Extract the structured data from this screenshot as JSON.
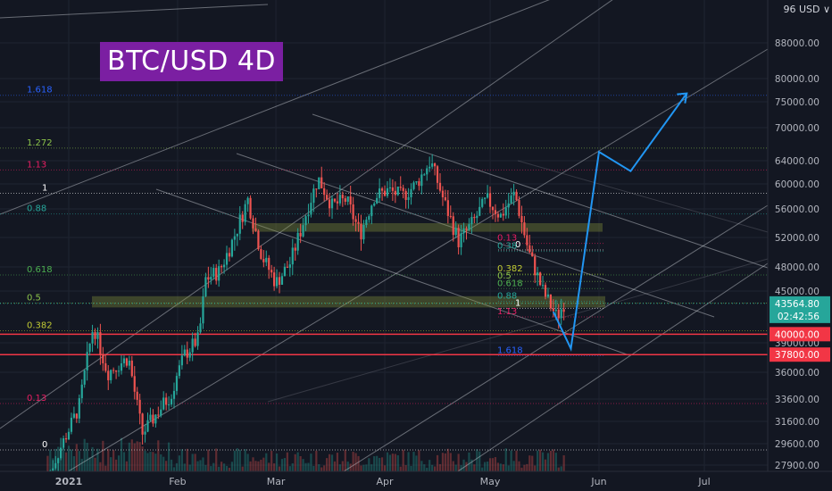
{
  "title": "BTC/USD 4D",
  "currency_label": "96\u0000 USD ∨",
  "chart_data": {
    "type": "candlestick",
    "symbol": "BTC/USD",
    "interval": "4D",
    "x_ticks": [
      "2021",
      "Feb",
      "Mar",
      "Apr",
      "May",
      "Jun",
      "Jul"
    ],
    "y_ticks": [
      88000,
      80000,
      75000,
      70000,
      64000,
      60000,
      56000,
      52000,
      48000,
      45000,
      39000,
      36000,
      33600,
      31600,
      29600,
      27900
    ],
    "y_tick_labels": [
      "88000.00",
      "80000.00",
      "75000.00",
      "70000.00",
      "64000.00",
      "60000.00",
      "56000.00",
      "52000.00",
      "48000.00",
      "45000.00",
      "39000.00",
      "36000.00",
      "33600.00",
      "31600.00",
      "29600.00",
      "27900.00"
    ],
    "current_price": {
      "value": 43564.8,
      "label": "43564.80",
      "countdown": "02:42:56",
      "color": "#26a69a"
    },
    "price_markers": [
      {
        "value": 40000,
        "label": "40000.00",
        "color": "#f23645"
      },
      {
        "value": 37800,
        "label": "37800.00",
        "color": "#f23645"
      }
    ],
    "fib_left": [
      {
        "label": "1.618",
        "value": 76400,
        "color": "#2962ff"
      },
      {
        "label": "1.272",
        "value": 66300,
        "color": "#8bc34a"
      },
      {
        "label": "1.13",
        "value": 62400,
        "color": "#e91e63"
      },
      {
        "label": "1",
        "value": 58500,
        "color": "#ffffff"
      },
      {
        "label": "0.88",
        "value": 55300,
        "color": "#26a69a"
      },
      {
        "label": "0.618",
        "value": 47000,
        "color": "#4caf50"
      },
      {
        "label": "0.5",
        "value": 43600,
        "color": "#8bc34a"
      },
      {
        "label": "0.382",
        "value": 40400,
        "color": "#c0ca33"
      },
      {
        "label": "0.13",
        "value": 33200,
        "color": "#e91e63"
      },
      {
        "label": "0",
        "value": 29100,
        "color": "#ffffff"
      }
    ],
    "fib_right": [
      {
        "label": "0",
        "value": 50300,
        "color": "#ffffff"
      },
      {
        "label": "0.13",
        "value": 51200,
        "color": "#e91e63"
      },
      {
        "label": "0.38",
        "value": 50100,
        "color": "#26a69a"
      },
      {
        "label": "0.382",
        "value": 47100,
        "color": "#c0ca33"
      },
      {
        "label": "0.5",
        "value": 46200,
        "color": "#8bc34a"
      },
      {
        "label": "0.618",
        "value": 45300,
        "color": "#4caf50"
      },
      {
        "label": "0.88",
        "value": 43800,
        "color": "#26a69a"
      },
      {
        "label": "1",
        "value": 43000,
        "color": "#ffffff"
      },
      {
        "label": "1.13",
        "value": 42000,
        "color": "#e91e63"
      },
      {
        "label": "1.618",
        "value": 37700,
        "color": "#2962ff"
      }
    ],
    "support_zones": [
      {
        "low": 43100,
        "high": 44400
      },
      {
        "low": 52800,
        "high": 54000
      }
    ],
    "projection": {
      "color": "#2196f3",
      "points": [
        {
          "x": "May 19",
          "y": 42600
        },
        {
          "x": "May 24",
          "y": 38400
        },
        {
          "x": "Jun 1",
          "y": 65600
        },
        {
          "x": "Jun 10",
          "y": 62200
        },
        {
          "x": "Jun 26",
          "y": 76800
        }
      ]
    },
    "price_path": [
      {
        "x": "Dec 26",
        "y": 27000
      },
      {
        "x": "Jan 4",
        "y": 33000
      },
      {
        "x": "Jan 8",
        "y": 41000
      },
      {
        "x": "Jan 12",
        "y": 36000
      },
      {
        "x": "Jan 18",
        "y": 37500
      },
      {
        "x": "Jan 22",
        "y": 30500
      },
      {
        "x": "Jan 26",
        "y": 32300
      },
      {
        "x": "Jan 30",
        "y": 34000
      },
      {
        "x": "Feb 3",
        "y": 37800
      },
      {
        "x": "Feb 7",
        "y": 39500
      },
      {
        "x": "Feb 9",
        "y": 46500
      },
      {
        "x": "Feb 13",
        "y": 47500
      },
      {
        "x": "Feb 17",
        "y": 52000
      },
      {
        "x": "Feb 21",
        "y": 57500
      },
      {
        "x": "Feb 25",
        "y": 49500
      },
      {
        "x": "Mar 1",
        "y": 46000
      },
      {
        "x": "Mar 5",
        "y": 48500
      },
      {
        "x": "Mar 9",
        "y": 54500
      },
      {
        "x": "Mar 13",
        "y": 61000
      },
      {
        "x": "Mar 17",
        "y": 56500
      },
      {
        "x": "Mar 21",
        "y": 57500
      },
      {
        "x": "Mar 25",
        "y": 52500
      },
      {
        "x": "Mar 29",
        "y": 58000
      },
      {
        "x": "Apr 2",
        "y": 59000
      },
      {
        "x": "Apr 6",
        "y": 58000
      },
      {
        "x": "Apr 10",
        "y": 60000
      },
      {
        "x": "Apr 14",
        "y": 64000
      },
      {
        "x": "Apr 18",
        "y": 57000
      },
      {
        "x": "Apr 22",
        "y": 51500
      },
      {
        "x": "Apr 26",
        "y": 54000
      },
      {
        "x": "Apr 30",
        "y": 57500
      },
      {
        "x": "May 4",
        "y": 55000
      },
      {
        "x": "May 8",
        "y": 58500
      },
      {
        "x": "May 12",
        "y": 50000
      },
      {
        "x": "May 16",
        "y": 45000
      },
      {
        "x": "May 20",
        "y": 42000
      },
      {
        "x": "May 22",
        "y": 43564.8
      }
    ]
  }
}
